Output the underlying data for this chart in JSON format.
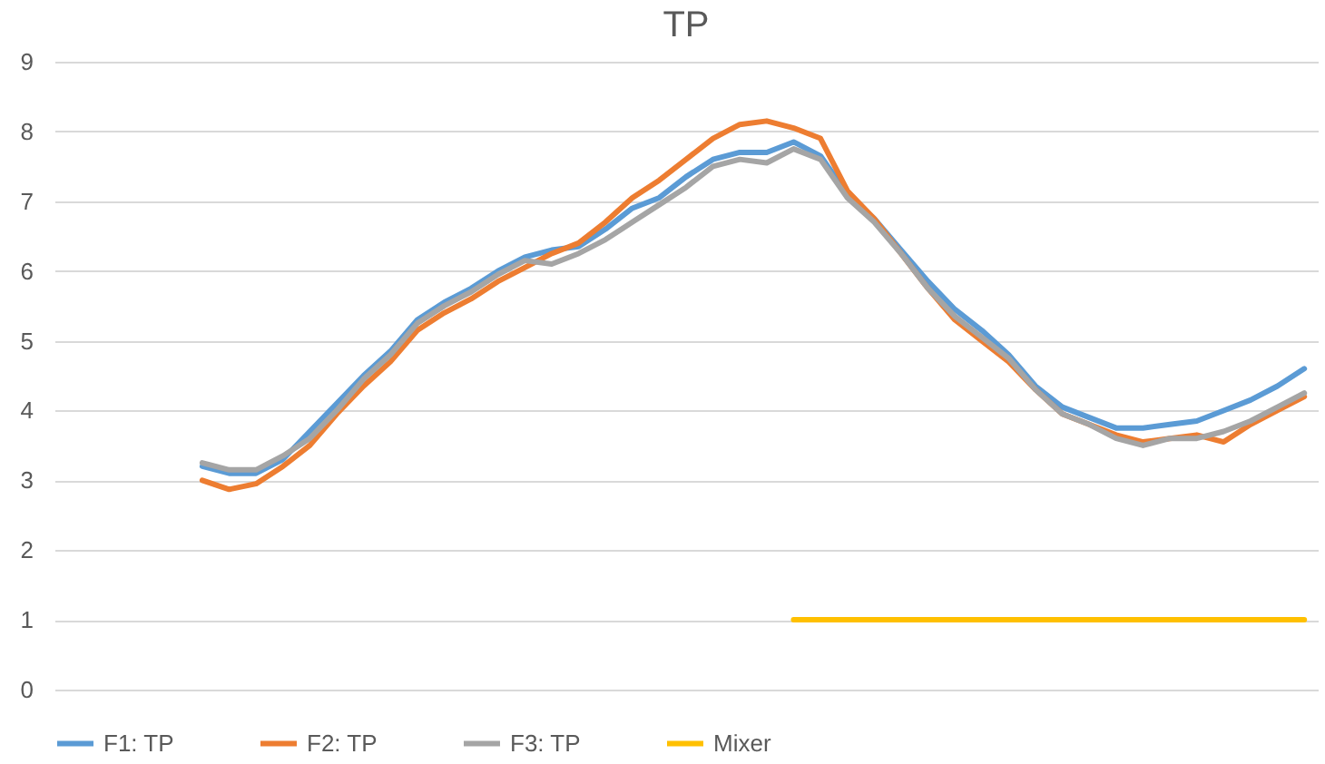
{
  "chart_data": {
    "type": "line",
    "title": "TP",
    "categories": [
      null,
      null,
      null,
      null,
      null,
      null,
      null,
      null,
      null,
      null,
      null,
      null,
      null,
      null,
      null,
      null,
      null,
      null,
      null,
      null,
      null,
      null,
      null,
      null,
      null,
      null,
      null,
      null,
      null,
      null,
      null,
      null,
      null,
      null,
      null,
      null,
      null,
      null,
      null,
      null,
      null,
      null,
      null,
      null,
      null,
      null,
      null
    ],
    "series": [
      {
        "name": "F1: TP",
        "color": "#5b9bd5",
        "values": [
          null,
          null,
          null,
          null,
          null,
          3.2,
          3.1,
          3.1,
          3.3,
          3.7,
          4.1,
          4.5,
          4.85,
          5.3,
          5.55,
          5.75,
          6.0,
          6.2,
          6.3,
          6.35,
          6.6,
          6.9,
          7.05,
          7.35,
          7.6,
          7.7,
          7.7,
          7.85,
          7.65,
          7.1,
          6.75,
          6.3,
          5.85,
          5.45,
          5.15,
          4.8,
          4.35,
          4.05,
          3.9,
          3.75,
          3.75,
          3.8,
          3.85,
          4.0,
          4.15,
          4.35,
          4.6
        ]
      },
      {
        "name": "F2: TP",
        "color": "#ed7d31",
        "values": [
          null,
          null,
          null,
          null,
          null,
          3.0,
          2.87,
          2.95,
          3.2,
          3.5,
          3.95,
          4.35,
          4.7,
          5.15,
          5.4,
          5.6,
          5.85,
          6.05,
          6.25,
          6.4,
          6.7,
          7.05,
          7.3,
          7.6,
          7.9,
          8.1,
          8.15,
          8.05,
          7.9,
          7.15,
          6.75,
          6.25,
          5.75,
          5.3,
          5.0,
          4.7,
          4.3,
          3.95,
          3.8,
          3.65,
          3.55,
          3.6,
          3.65,
          3.55,
          3.8,
          4.0,
          4.2
        ]
      },
      {
        "name": "F3: TP",
        "color": "#a5a5a5",
        "values": [
          null,
          null,
          null,
          null,
          null,
          3.25,
          3.15,
          3.15,
          3.35,
          3.6,
          4.0,
          4.45,
          4.8,
          5.25,
          5.5,
          5.7,
          5.95,
          6.15,
          6.1,
          6.25,
          6.45,
          6.7,
          6.95,
          7.2,
          7.5,
          7.6,
          7.55,
          7.75,
          7.6,
          7.05,
          6.7,
          6.25,
          5.75,
          5.35,
          5.05,
          4.75,
          4.3,
          3.95,
          3.8,
          3.6,
          3.5,
          3.6,
          3.6,
          3.7,
          3.85,
          4.05,
          4.25
        ]
      },
      {
        "name": "Mixer",
        "color": "#ffc000",
        "values": [
          null,
          null,
          null,
          null,
          null,
          null,
          null,
          null,
          null,
          null,
          null,
          null,
          null,
          null,
          null,
          null,
          null,
          null,
          null,
          null,
          null,
          null,
          null,
          null,
          null,
          null,
          null,
          1,
          1,
          1,
          1,
          1,
          1,
          1,
          1,
          1,
          1,
          1,
          1,
          1,
          1,
          1,
          1,
          1,
          1,
          1,
          1
        ]
      }
    ],
    "ylim": [
      0,
      9
    ],
    "yticks": [
      0,
      1,
      2,
      3,
      4,
      5,
      6,
      7,
      8,
      9
    ],
    "grid": "y",
    "legend": "bottom",
    "tick_labels": "y",
    "line_style": "solid"
  }
}
